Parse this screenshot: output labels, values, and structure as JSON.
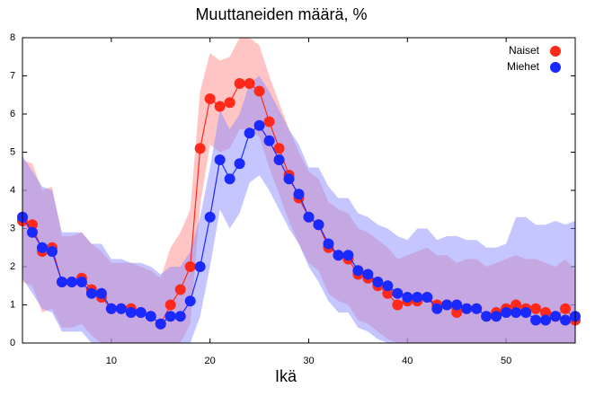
{
  "chart_data": {
    "type": "line",
    "title": "Muuttaneiden määrä, %",
    "x_label": "Ikä",
    "x": [
      1,
      2,
      3,
      4,
      5,
      6,
      7,
      8,
      9,
      10,
      11,
      12,
      13,
      14,
      15,
      16,
      17,
      18,
      19,
      20,
      21,
      22,
      23,
      24,
      25,
      26,
      27,
      28,
      29,
      30,
      31,
      32,
      33,
      34,
      35,
      36,
      37,
      38,
      39,
      40,
      41,
      42,
      43,
      44,
      45,
      46,
      47,
      48,
      49,
      50,
      51,
      52,
      53,
      54,
      55,
      56,
      57
    ],
    "xlim": [
      1,
      57
    ],
    "xticks": [
      10,
      20,
      30,
      40,
      50
    ],
    "ylim": [
      0,
      8
    ],
    "yticks": [
      0,
      1,
      2,
      3,
      4,
      5,
      6,
      7,
      8
    ],
    "legend": "upper right",
    "series": [
      {
        "name": "Naiset",
        "color": "#ff2a1a",
        "band_color": "#ff8c8c",
        "values": [
          3.2,
          3.1,
          2.4,
          2.5,
          1.6,
          1.6,
          1.7,
          1.4,
          1.2,
          0.9,
          0.9,
          0.9,
          0.8,
          0.7,
          0.5,
          1.0,
          1.4,
          2.0,
          5.1,
          6.4,
          6.2,
          6.3,
          6.8,
          6.8,
          6.6,
          5.8,
          5.1,
          4.4,
          3.8,
          3.3,
          3.1,
          2.5,
          2.3,
          2.2,
          1.8,
          1.7,
          1.5,
          1.3,
          1.0,
          1.1,
          1.1,
          1.2,
          1.0,
          1.0,
          0.8,
          0.9,
          0.9,
          0.7,
          0.8,
          0.9,
          1.0,
          0.9,
          0.9,
          0.8,
          0.7,
          0.9,
          0.6
        ],
        "upper": [
          4.8,
          4.7,
          4.0,
          4.1,
          2.8,
          2.8,
          2.9,
          2.6,
          2.4,
          2.1,
          2.1,
          2.1,
          2.0,
          1.9,
          1.7,
          2.5,
          2.9,
          3.5,
          6.6,
          7.6,
          7.4,
          7.5,
          8.0,
          8.0,
          7.8,
          7.0,
          6.3,
          5.6,
          5.0,
          4.5,
          4.3,
          3.7,
          3.5,
          3.4,
          3.0,
          2.9,
          2.7,
          2.5,
          2.2,
          2.3,
          2.4,
          2.5,
          2.3,
          2.3,
          2.1,
          2.2,
          2.2,
          2.0,
          2.1,
          2.2,
          2.3,
          2.2,
          2.2,
          2.1,
          2.0,
          2.2,
          1.9
        ],
        "lower": [
          1.6,
          1.5,
          0.8,
          0.9,
          0.4,
          0.4,
          0.5,
          0.2,
          0,
          0,
          0,
          0,
          0,
          0,
          0,
          0,
          0,
          0.5,
          3.6,
          5.2,
          5.0,
          5.1,
          5.6,
          5.6,
          5.4,
          4.6,
          3.9,
          3.2,
          2.6,
          2.1,
          1.9,
          1.3,
          1.1,
          1.0,
          0.6,
          0.5,
          0.3,
          0.1,
          0,
          0,
          0,
          0,
          0,
          0,
          0,
          0,
          0,
          0,
          0,
          0,
          0,
          0,
          0,
          0,
          0,
          0,
          0
        ]
      },
      {
        "name": "Miehet",
        "color": "#1a2aff",
        "band_color": "#8c8cff",
        "values": [
          3.3,
          2.9,
          2.5,
          2.4,
          1.6,
          1.6,
          1.6,
          1.3,
          1.3,
          0.9,
          0.9,
          0.8,
          0.8,
          0.7,
          0.5,
          0.7,
          0.7,
          1.1,
          2.0,
          3.3,
          4.8,
          4.3,
          4.7,
          5.5,
          5.7,
          5.3,
          4.8,
          4.3,
          3.9,
          3.3,
          3.1,
          2.6,
          2.3,
          2.3,
          1.9,
          1.8,
          1.6,
          1.5,
          1.3,
          1.2,
          1.2,
          1.2,
          0.9,
          1.0,
          1.0,
          0.9,
          0.9,
          0.7,
          0.7,
          0.8,
          0.8,
          0.8,
          0.6,
          0.6,
          0.7,
          0.6,
          0.7
        ],
        "upper": [
          4.9,
          4.5,
          4.1,
          4.0,
          2.9,
          2.9,
          2.9,
          2.6,
          2.6,
          2.2,
          2.2,
          2.1,
          2.1,
          2.0,
          1.8,
          2.0,
          2.0,
          2.4,
          3.3,
          4.6,
          6.1,
          5.6,
          6.0,
          6.8,
          7.0,
          6.6,
          6.1,
          5.6,
          5.2,
          4.6,
          4.6,
          4.1,
          3.8,
          3.8,
          3.4,
          3.3,
          3.1,
          3.0,
          2.8,
          2.7,
          3.0,
          3.0,
          2.7,
          2.8,
          2.8,
          2.7,
          2.7,
          2.5,
          2.5,
          2.6,
          3.3,
          3.3,
          3.1,
          3.1,
          3.2,
          3.1,
          3.2
        ],
        "lower": [
          1.7,
          1.3,
          0.9,
          0.8,
          0.3,
          0.3,
          0.3,
          0,
          0,
          0,
          0,
          0,
          0,
          0,
          0,
          0,
          0,
          0,
          0.7,
          2.0,
          3.5,
          3.0,
          3.4,
          4.2,
          4.4,
          4.0,
          3.5,
          3.0,
          2.6,
          2.0,
          1.6,
          1.1,
          0.8,
          0.8,
          0.4,
          0.3,
          0.1,
          0,
          0,
          0,
          0,
          0,
          0,
          0,
          0,
          0,
          0,
          0,
          0,
          0,
          0,
          0,
          0,
          0,
          0,
          0,
          0
        ]
      }
    ]
  }
}
